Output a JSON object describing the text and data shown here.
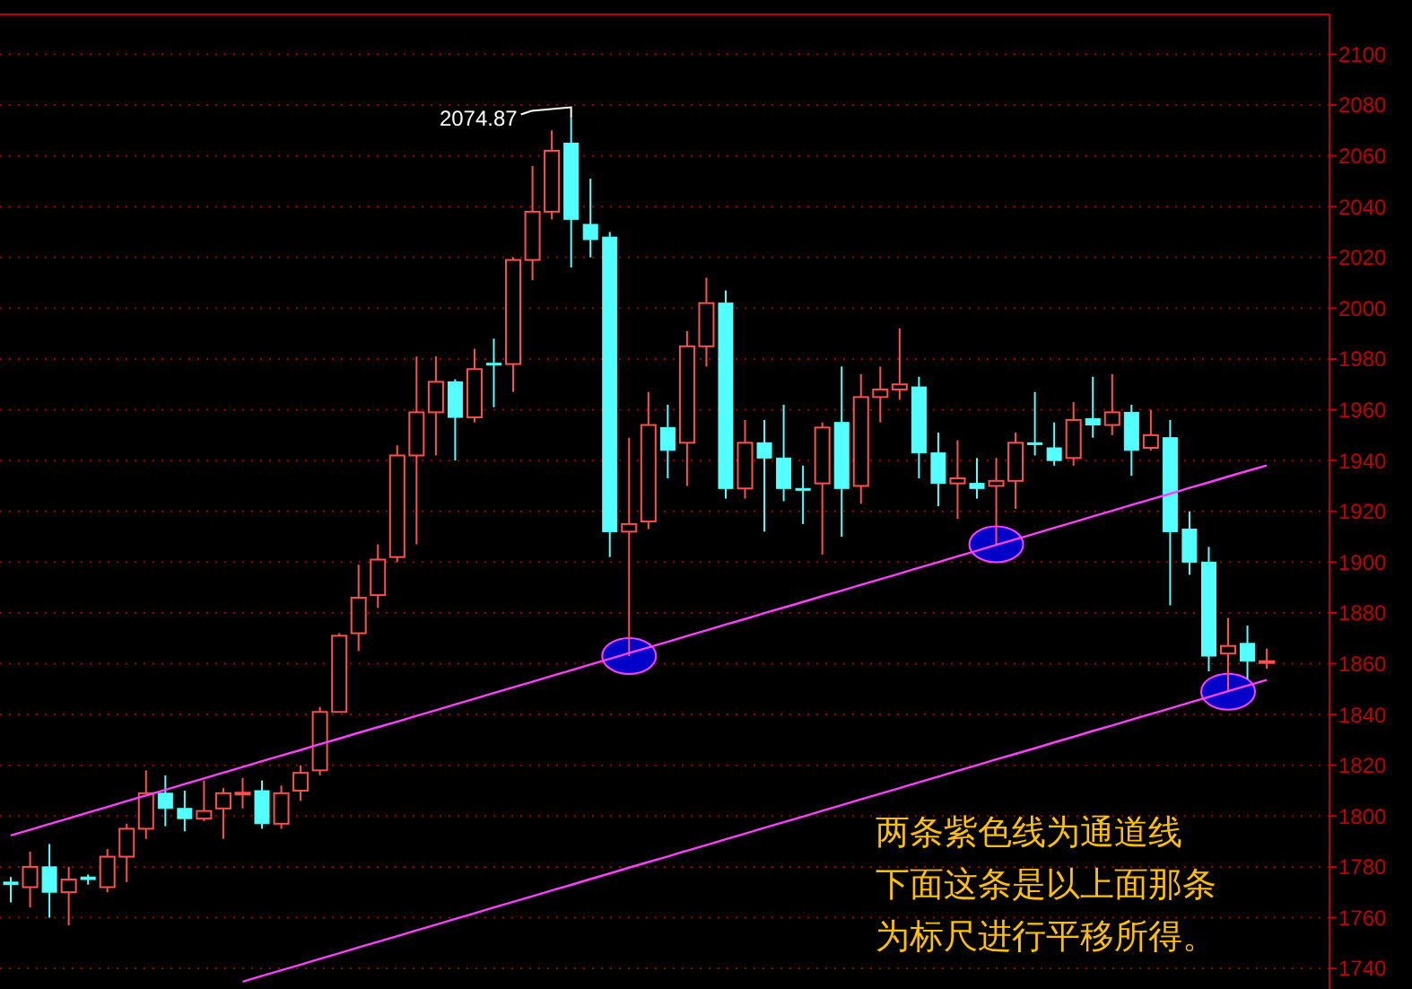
{
  "chart_data": {
    "type": "candlestick",
    "categories": [
      null,
      null,
      null,
      null,
      null,
      null,
      null,
      null,
      null,
      null,
      null,
      null,
      null,
      null,
      null,
      null,
      null,
      null,
      null,
      null,
      null,
      null,
      null,
      null,
      null,
      null,
      null,
      null,
      null,
      null,
      null,
      null,
      null,
      null,
      null,
      null,
      null,
      null,
      null,
      null,
      null,
      null,
      null,
      null,
      null,
      null,
      null,
      null,
      null,
      null,
      null,
      null,
      null,
      null,
      null,
      null,
      null,
      null,
      null,
      null,
      null,
      null,
      null,
      null,
      null,
      null
    ],
    "ohlc": [
      [
        1774,
        1776,
        1766,
        1773
      ],
      [
        1772,
        1786,
        1764,
        1780
      ],
      [
        1780,
        1789,
        1760,
        1770
      ],
      [
        1770,
        1780,
        1757,
        1775
      ],
      [
        1776,
        1777,
        1773,
        1775
      ],
      [
        1772,
        1787,
        1770,
        1784
      ],
      [
        1784,
        1797,
        1774,
        1795
      ],
      [
        1795,
        1818,
        1791,
        1809
      ],
      [
        1809,
        1816,
        1796,
        1803
      ],
      [
        1803,
        1810,
        1794,
        1799
      ],
      [
        1799,
        1814,
        1798,
        1802
      ],
      [
        1803,
        1811,
        1791,
        1809
      ],
      [
        1808.8,
        1815,
        1803,
        1809.2
      ],
      [
        1810,
        1814,
        1795,
        1797
      ],
      [
        1797,
        1812,
        1795,
        1809
      ],
      [
        1810,
        1820,
        1806,
        1817
      ],
      [
        1818,
        1843,
        1816,
        1841
      ],
      [
        1841,
        1872,
        1841,
        1871
      ],
      [
        1872,
        1899,
        1865,
        1886
      ],
      [
        1887,
        1907,
        1882,
        1901
      ],
      [
        1902,
        1946,
        1900,
        1942
      ],
      [
        1942,
        1981,
        1907,
        1959
      ],
      [
        1959,
        1981,
        1942,
        1971
      ],
      [
        1971,
        1972,
        1940,
        1957
      ],
      [
        1957,
        1984,
        1955,
        1976
      ],
      [
        1978.3,
        1988,
        1961,
        1978
      ],
      [
        1978,
        2020,
        1967,
        2019
      ],
      [
        2019,
        2056,
        2011,
        2038
      ],
      [
        2038,
        2070,
        2035,
        2062
      ],
      [
        2065,
        2074.87,
        2016,
        2035
      ],
      [
        2033,
        2051,
        2020,
        2027
      ],
      [
        2028,
        2030,
        1902,
        1912
      ],
      [
        1912,
        1949,
        1863,
        1915
      ],
      [
        1916,
        1967,
        1913,
        1954
      ],
      [
        1953,
        1962,
        1933,
        1944
      ],
      [
        1947,
        1991,
        1930,
        1985
      ],
      [
        1985,
        2012,
        1977,
        2002
      ],
      [
        2002,
        2007,
        1925,
        1929
      ],
      [
        1929,
        1956,
        1925,
        1947
      ],
      [
        1947,
        1956,
        1912,
        1941
      ],
      [
        1941,
        1962,
        1924,
        1929
      ],
      [
        1929,
        1938,
        1915,
        1928.5
      ],
      [
        1931,
        1955,
        1903,
        1953
      ],
      [
        1955,
        1977,
        1910,
        1929
      ],
      [
        1930,
        1974,
        1923,
        1965
      ],
      [
        1965,
        1977,
        1955,
        1968
      ],
      [
        1968,
        1992,
        1964,
        1970
      ],
      [
        1969,
        1973,
        1933,
        1943
      ],
      [
        1943,
        1951,
        1922,
        1931
      ],
      [
        1931,
        1948,
        1917,
        1933
      ],
      [
        1931,
        1941,
        1925,
        1929
      ],
      [
        1930,
        1941,
        1907,
        1932
      ],
      [
        1932,
        1951,
        1921,
        1947
      ],
      [
        1947,
        1967,
        1942,
        1946.5
      ],
      [
        1945,
        1955,
        1938,
        1940
      ],
      [
        1941,
        1963,
        1938,
        1956
      ],
      [
        1956.5,
        1973,
        1949,
        1954
      ],
      [
        1954,
        1974,
        1950,
        1959
      ],
      [
        1959,
        1962,
        1934,
        1944
      ],
      [
        1945,
        1960,
        1944,
        1950
      ],
      [
        1949,
        1956,
        1883,
        1912
      ],
      [
        1913,
        1920,
        1895,
        1900
      ],
      [
        1900,
        1906,
        1857,
        1863
      ],
      [
        1864,
        1878,
        1849,
        1867
      ],
      [
        1868,
        1875,
        1854,
        1861
      ],
      [
        1860.6,
        1866,
        1858,
        1861
      ]
    ],
    "series": [
      {
        "type": "line",
        "color": "#ff40ff",
        "values": [
          1792.4,
          1794.6,
          1796.9,
          1799.1,
          1801.4,
          1803.6,
          1805.9,
          1808.1,
          1810.3,
          1812.6,
          1814.8,
          1817.1,
          1819.3,
          1821.6,
          1823.8,
          1826.0,
          1828.3,
          1830.5,
          1832.8,
          1835.0,
          1837.2,
          1839.5,
          1841.7,
          1844.0,
          1846.2,
          1848.5,
          1850.7,
          1852.9,
          1855.2,
          1857.4,
          1859.7,
          1861.9,
          1864.2,
          1866.4,
          1868.6,
          1870.9,
          1873.1,
          1875.4,
          1877.6,
          1879.9,
          1882.1,
          1884.3,
          1886.6,
          1888.8,
          1891.1,
          1893.3,
          1895.5,
          1897.8,
          1900.0,
          1902.3,
          1904.5,
          1906.8,
          1909.0,
          1911.2,
          1913.5,
          1915.7,
          1918.0,
          1920.2,
          1922.5,
          1924.7,
          1926.9,
          1929.2,
          1931.4,
          1933.7,
          1935.9,
          1938.1
        ]
      },
      {
        "type": "line",
        "color": "#ff40ff",
        "values": [
          null,
          null,
          null,
          null,
          null,
          null,
          null,
          null,
          null,
          null,
          null,
          null,
          1734.8,
          1737.1,
          1739.3,
          1741.5,
          1743.8,
          1746.0,
          1748.3,
          1750.5,
          1752.7,
          1755.0,
          1757.2,
          1759.5,
          1761.7,
          1764.0,
          1766.2,
          1768.4,
          1770.7,
          1772.9,
          1775.2,
          1777.4,
          1779.7,
          1781.9,
          1784.1,
          1786.4,
          1788.6,
          1790.9,
          1793.1,
          1795.4,
          1797.6,
          1799.8,
          1802.1,
          1804.3,
          1806.6,
          1808.8,
          1811.0,
          1813.3,
          1815.5,
          1817.8,
          1820.0,
          1822.3,
          1824.5,
          1826.7,
          1829.0,
          1831.2,
          1833.5,
          1835.7,
          1838.0,
          1840.2,
          1842.4,
          1844.7,
          1846.9,
          1849.2,
          1851.4,
          1853.6
        ]
      }
    ],
    "ylim": [
      1731.9,
      2115.7
    ],
    "yticks": [
      1740,
      1760,
      1780,
      1800,
      1820,
      1840,
      1860,
      1880,
      1900,
      1920,
      1940,
      1960,
      1980,
      2000,
      2020,
      2040,
      2060,
      2080,
      2100
    ],
    "grid": "y",
    "tick_labels": "y",
    "annotations": [
      "2074.87",
      "两条紫色线为通道线",
      "下面这条是以上面那条",
      "为标尺进行平移所得。"
    ]
  }
}
